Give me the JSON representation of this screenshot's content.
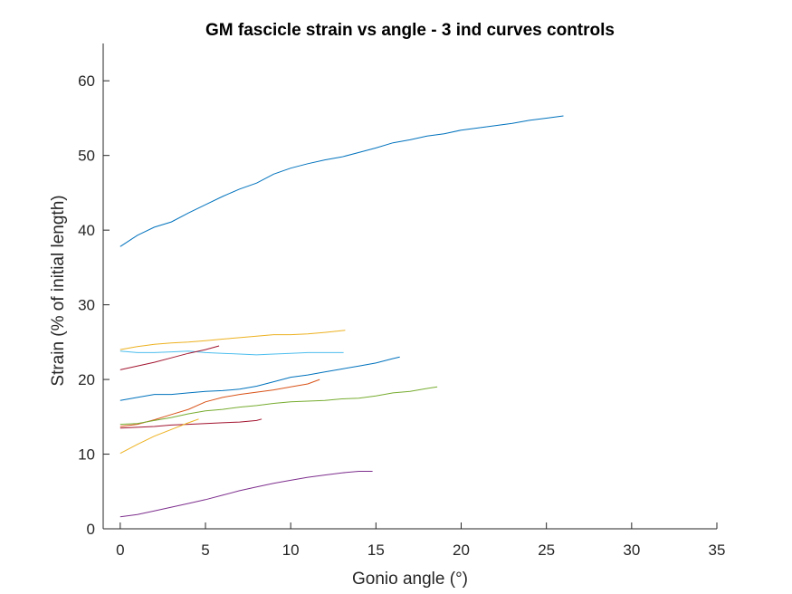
{
  "chart_data": {
    "type": "line",
    "title": "GM fascicle strain vs angle - 3 ind curves controls",
    "xlabel": "Gonio angle (°)",
    "ylabel": "Strain (% of initial length)",
    "xlim": [
      -1,
      35
    ],
    "ylim": [
      0,
      65
    ],
    "xticks": [
      0,
      5,
      10,
      15,
      20,
      25,
      30,
      35
    ],
    "yticks": [
      0,
      10,
      20,
      30,
      40,
      50,
      60
    ],
    "grid": false,
    "series": [
      {
        "color": "#0072BD",
        "x": [
          0,
          1,
          2,
          3,
          4,
          5,
          6,
          7,
          8,
          9,
          10,
          11,
          12,
          13,
          14,
          15,
          16,
          17,
          18,
          19,
          20,
          21,
          22,
          23,
          24,
          25,
          26
        ],
        "y": [
          37.8,
          39.3,
          40.4,
          41.1,
          42.3,
          43.4,
          44.5,
          45.5,
          46.3,
          47.5,
          48.3,
          48.9,
          49.4,
          49.8,
          50.4,
          51.0,
          51.7,
          52.1,
          52.6,
          52.9,
          53.4,
          53.7,
          54.0,
          54.3,
          54.7,
          55.0,
          55.3
        ]
      },
      {
        "color": "#EDB120",
        "x": [
          0,
          1,
          2,
          3,
          4,
          5,
          6,
          7,
          8,
          9,
          10,
          11,
          12,
          13.2
        ],
        "y": [
          24.0,
          24.4,
          24.7,
          24.9,
          25.0,
          25.2,
          25.4,
          25.6,
          25.8,
          26.0,
          26.0,
          26.1,
          26.3,
          26.6
        ]
      },
      {
        "color": "#4DBEEE",
        "x": [
          0,
          1,
          2,
          3,
          4,
          5,
          6,
          7,
          8,
          9,
          10,
          11,
          12,
          13.1
        ],
        "y": [
          23.8,
          23.6,
          23.6,
          23.7,
          23.8,
          23.6,
          23.5,
          23.4,
          23.3,
          23.4,
          23.5,
          23.6,
          23.6,
          23.6
        ]
      },
      {
        "color": "#A2142F",
        "x": [
          0,
          1,
          2,
          3,
          4,
          5,
          5.8
        ],
        "y": [
          21.3,
          21.8,
          22.3,
          22.9,
          23.5,
          24.0,
          24.5
        ]
      },
      {
        "color": "#0072BD",
        "x": [
          0,
          1,
          2,
          3,
          4,
          5,
          6,
          7,
          8,
          9,
          10,
          11,
          12,
          13,
          14,
          15,
          16,
          16.4
        ],
        "y": [
          17.2,
          17.6,
          18.0,
          18.0,
          18.2,
          18.4,
          18.5,
          18.7,
          19.1,
          19.7,
          20.3,
          20.6,
          21.0,
          21.4,
          21.8,
          22.2,
          22.8,
          23.0
        ]
      },
      {
        "color": "#D95319",
        "x": [
          0,
          1,
          2,
          3,
          4,
          5,
          6,
          7,
          8,
          9,
          10,
          11,
          11.7
        ],
        "y": [
          13.7,
          14.0,
          14.6,
          15.3,
          16.0,
          17.0,
          17.6,
          18.0,
          18.3,
          18.6,
          19.0,
          19.4,
          20.0
        ]
      },
      {
        "color": "#77AC30",
        "x": [
          0,
          1,
          2,
          3,
          4,
          5,
          6,
          7,
          8,
          9,
          10,
          11,
          12,
          13,
          14,
          15,
          16,
          17,
          18,
          18.6
        ],
        "y": [
          14.0,
          14.1,
          14.5,
          14.9,
          15.4,
          15.8,
          16.0,
          16.3,
          16.5,
          16.8,
          17.0,
          17.1,
          17.2,
          17.4,
          17.5,
          17.8,
          18.2,
          18.4,
          18.8,
          19.0
        ]
      },
      {
        "color": "#A2142F",
        "x": [
          0,
          1,
          2,
          3,
          4,
          5,
          6,
          7,
          8,
          8.3
        ],
        "y": [
          13.5,
          13.6,
          13.7,
          13.9,
          14.0,
          14.1,
          14.2,
          14.3,
          14.5,
          14.7
        ]
      },
      {
        "color": "#EDB120",
        "x": [
          0,
          1,
          2,
          3,
          4,
          4.6
        ],
        "y": [
          10.1,
          11.3,
          12.4,
          13.3,
          14.2,
          14.7
        ]
      },
      {
        "color": "#7E2F8E",
        "x": [
          0,
          1,
          2,
          3,
          4,
          5,
          6,
          7,
          8,
          9,
          10,
          11,
          12,
          13,
          14,
          14.8
        ],
        "y": [
          1.6,
          1.9,
          2.4,
          2.9,
          3.4,
          3.9,
          4.5,
          5.1,
          5.6,
          6.1,
          6.5,
          6.9,
          7.2,
          7.5,
          7.7,
          7.7
        ]
      }
    ]
  }
}
